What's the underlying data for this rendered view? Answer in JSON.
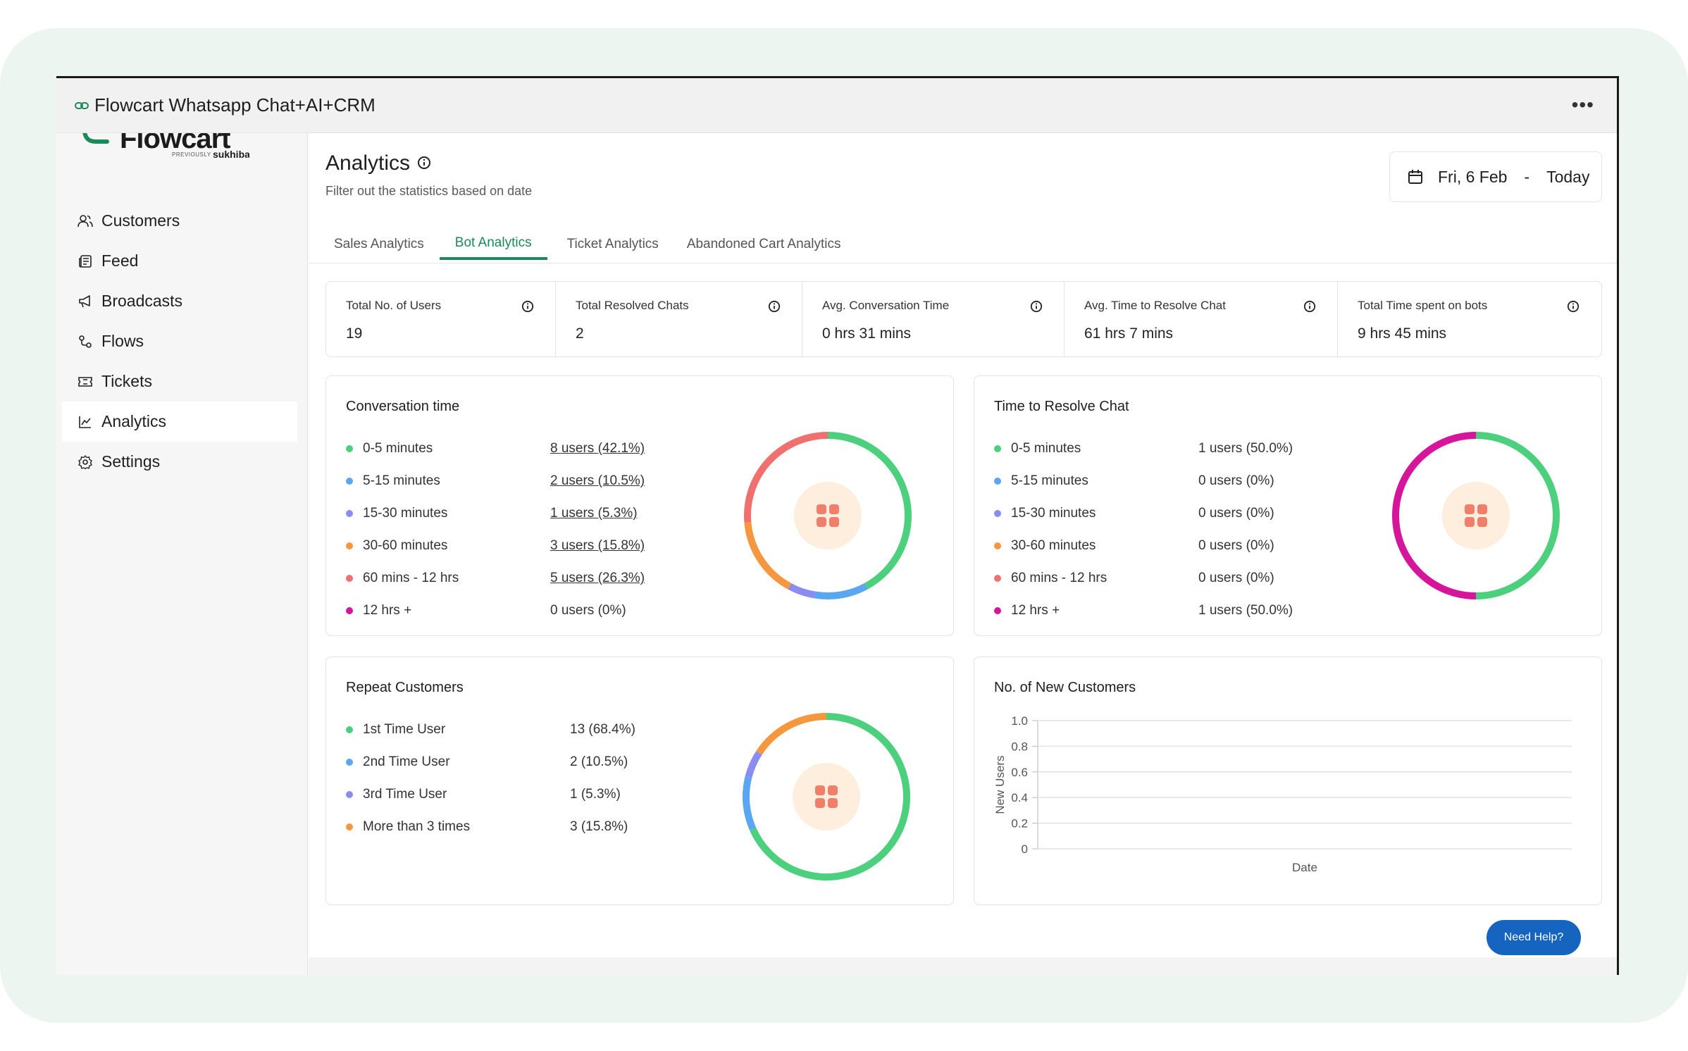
{
  "window": {
    "title": "Flowcart Whatsapp Chat+AI+CRM"
  },
  "logo": {
    "name": "Flowcart",
    "previously": "PREVIOUSLY",
    "former_brand": "sukhiba"
  },
  "sidebar": {
    "items": [
      {
        "label": "Customers",
        "icon": "users-icon"
      },
      {
        "label": "Feed",
        "icon": "newspaper-icon"
      },
      {
        "label": "Broadcasts",
        "icon": "megaphone-icon"
      },
      {
        "label": "Flows",
        "icon": "flow-icon"
      },
      {
        "label": "Tickets",
        "icon": "ticket-icon"
      },
      {
        "label": "Analytics",
        "icon": "chart-line-icon",
        "active": true
      },
      {
        "label": "Settings",
        "icon": "gear-icon"
      }
    ]
  },
  "header": {
    "title": "Analytics",
    "subtitle": "Filter out the statistics based on date",
    "date_from": "Fri, 6 Feb",
    "date_sep": "-",
    "date_to": "Today"
  },
  "tabs": [
    {
      "label": "Sales Analytics"
    },
    {
      "label": "Bot Analytics",
      "active": true
    },
    {
      "label": "Ticket Analytics"
    },
    {
      "label": "Abandoned Cart Analytics"
    }
  ],
  "stats": [
    {
      "label": "Total No. of Users",
      "value": "19"
    },
    {
      "label": "Total Resolved Chats",
      "value": "2"
    },
    {
      "label": "Avg. Conversation Time",
      "value": "0 hrs 31 mins"
    },
    {
      "label": "Avg. Time to Resolve Chat",
      "value": "61 hrs 7 mins"
    },
    {
      "label": "Total Time spent on bots",
      "value": "9 hrs 45 mins"
    }
  ],
  "colors": {
    "green": "#4cd07d",
    "blue": "#5aa6f0",
    "violet": "#8a8cf0",
    "orange": "#f5973e",
    "red": "#f07070",
    "magenta": "#d5159a",
    "accent": "#1a8a5a",
    "help": "#1565c0"
  },
  "conversation_time": {
    "title": "Conversation time",
    "rows": [
      {
        "label": "0-5 minutes",
        "value": "8 users (42.1%)",
        "pct": 42.1,
        "color": "#4cd07d",
        "link": true
      },
      {
        "label": "5-15 minutes",
        "value": "2 users (10.5%)",
        "pct": 10.5,
        "color": "#5aa6f0",
        "link": true
      },
      {
        "label": "15-30 minutes",
        "value": "1 users (5.3%)",
        "pct": 5.3,
        "color": "#8a8cf0",
        "link": true
      },
      {
        "label": "30-60 minutes",
        "value": "3 users (15.8%)",
        "pct": 15.8,
        "color": "#f5973e",
        "link": true
      },
      {
        "label": "60 mins - 12 hrs",
        "value": "5 users (26.3%)",
        "pct": 26.3,
        "color": "#f07070",
        "link": true
      },
      {
        "label": "12 hrs +",
        "value": "0 users (0%)",
        "pct": 0,
        "color": "#d5159a",
        "link": false
      }
    ]
  },
  "resolve_time": {
    "title": "Time to Resolve Chat",
    "rows": [
      {
        "label": "0-5 minutes",
        "value": "1 users (50.0%)",
        "pct": 50,
        "color": "#4cd07d"
      },
      {
        "label": "5-15 minutes",
        "value": "0 users (0%)",
        "pct": 0,
        "color": "#5aa6f0"
      },
      {
        "label": "15-30 minutes",
        "value": "0 users (0%)",
        "pct": 0,
        "color": "#8a8cf0"
      },
      {
        "label": "30-60 minutes",
        "value": "0 users (0%)",
        "pct": 0,
        "color": "#f5973e"
      },
      {
        "label": "60 mins - 12 hrs",
        "value": "0 users (0%)",
        "pct": 0,
        "color": "#f07070"
      },
      {
        "label": "12 hrs +",
        "value": "1 users (50.0%)",
        "pct": 50,
        "color": "#d5159a"
      }
    ]
  },
  "repeat_customers": {
    "title": "Repeat Customers",
    "rows": [
      {
        "label": "1st Time User",
        "value": "13 (68.4%)",
        "pct": 68.4,
        "color": "#4cd07d"
      },
      {
        "label": "2nd Time User",
        "value": "2 (10.5%)",
        "pct": 10.5,
        "color": "#5aa6f0"
      },
      {
        "label": "3rd Time User",
        "value": "1 (5.3%)",
        "pct": 5.3,
        "color": "#8a8cf0"
      },
      {
        "label": "More than 3 times",
        "value": "3 (15.8%)",
        "pct": 15.8,
        "color": "#f5973e"
      }
    ]
  },
  "chart_data": {
    "type": "line",
    "title": "No. of New Customers",
    "xlabel": "Date",
    "ylabel": "New Users",
    "ylim": [
      0,
      1.0
    ],
    "yticks": [
      "1.0",
      "0.8",
      "0.6",
      "0.4",
      "0.2",
      "0"
    ],
    "x": [],
    "series": [],
    "grid": true
  },
  "help": {
    "label": "Need Help?"
  }
}
